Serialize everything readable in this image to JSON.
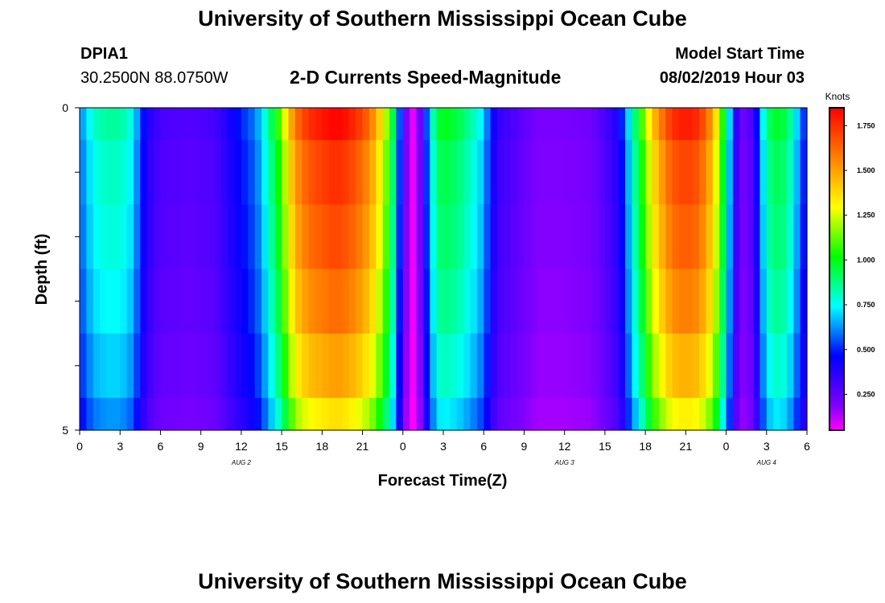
{
  "header": {
    "title": "University of Southern Mississippi Ocean Cube",
    "station_id": "DPIA1",
    "station_coords": "30.2500N 88.0750W",
    "subtitle": "2-D Currents Speed-Magnitude",
    "model_label": "Model Start Time",
    "model_time": "08/02/2019 Hour 03"
  },
  "footer": {
    "title": "University of Southern Mississippi Ocean Cube"
  },
  "chart_data": {
    "type": "heatmap",
    "title": "2-D Currents Speed-Magnitude",
    "xlabel": "Forecast Time(Z)",
    "ylabel": "Depth (ft)",
    "xlim": [
      0,
      54
    ],
    "ylim": [
      0,
      5
    ],
    "x_tick_values": [
      0,
      3,
      6,
      9,
      12,
      15,
      18,
      21,
      24,
      27,
      30,
      33,
      36,
      39,
      42,
      45,
      48,
      51,
      54
    ],
    "x_tick_labels": [
      "0",
      "3",
      "6",
      "9",
      "12",
      "15",
      "18",
      "21",
      "0",
      "3",
      "6",
      "9",
      "12",
      "15",
      "18",
      "21",
      "0",
      "3",
      "6"
    ],
    "y_tick_values": [
      0,
      1,
      2,
      3,
      4,
      5
    ],
    "y_tick_labels": [
      "0",
      "",
      "",
      "",
      "",
      "5"
    ],
    "date_labels": [
      {
        "x": 12,
        "text": "AUG 2"
      },
      {
        "x": 36,
        "text": "AUG 3"
      },
      {
        "x": 51,
        "text": "AUG 4"
      }
    ],
    "colorbar": {
      "unit": "Knots",
      "min": 0.05,
      "max": 1.85,
      "tick_values": [
        0.25,
        0.5,
        0.75,
        1.0,
        1.25,
        1.5,
        1.75
      ],
      "tick_labels": [
        "0.250",
        "0.500",
        "0.750",
        "1.000",
        "1.250",
        "1.500",
        "1.750"
      ],
      "colors": [
        "#ff00ff",
        "#7f00ff",
        "#3b00ff",
        "#0000ff",
        "#0080ff",
        "#00ffff",
        "#00ff80",
        "#00ff00",
        "#80ff00",
        "#ffff00",
        "#ffc000",
        "#ff8000",
        "#ff4000",
        "#ff0000"
      ]
    },
    "depth_bins": [
      0,
      0.5,
      1.5,
      2.5,
      3.5,
      4.5,
      5
    ],
    "time_step_hours": 0.5,
    "speed_model": {
      "description": "Column speed (knots) keyed by forecast hour; depth rows apply a factor from surface to bottom",
      "hours": [
        0,
        0.5,
        1,
        2,
        3,
        4,
        4.5,
        5,
        6,
        8,
        10,
        11,
        12,
        13,
        13.5,
        14,
        14.5,
        15,
        15.5,
        16,
        17,
        18,
        19,
        20,
        21,
        22,
        22.5,
        23,
        23.5,
        24,
        24.5,
        25,
        25.5,
        26,
        26.5,
        27,
        28,
        29,
        30,
        30.5,
        31,
        32,
        33,
        34,
        36,
        38,
        39,
        40,
        40.5,
        41,
        41.5,
        42,
        42.5,
        43,
        44,
        45,
        46,
        47,
        47.5,
        48,
        48.5,
        49,
        49.5,
        50,
        50.5,
        51,
        52,
        53,
        53.5,
        54
      ],
      "surface": [
        0.6,
        0.7,
        0.8,
        0.85,
        0.85,
        0.75,
        0.55,
        0.4,
        0.3,
        0.28,
        0.3,
        0.4,
        0.5,
        0.6,
        0.7,
        0.85,
        1.0,
        1.15,
        1.4,
        1.6,
        1.75,
        1.8,
        1.85,
        1.8,
        1.7,
        1.5,
        1.3,
        1.1,
        0.8,
        0.3,
        0.1,
        0.05,
        0.4,
        0.7,
        0.95,
        1.0,
        0.95,
        0.85,
        0.7,
        0.5,
        0.35,
        0.3,
        0.25,
        0.2,
        0.2,
        0.22,
        0.3,
        0.4,
        0.6,
        0.8,
        1.0,
        1.2,
        1.4,
        1.55,
        1.75,
        1.8,
        1.75,
        1.5,
        1.2,
        0.9,
        0.5,
        0.2,
        0.25,
        0.3,
        0.6,
        0.9,
        1.0,
        0.8,
        0.6,
        0.45
      ],
      "depth_factor": [
        1.0,
        0.95,
        0.92,
        0.88,
        0.82,
        0.74
      ]
    }
  }
}
